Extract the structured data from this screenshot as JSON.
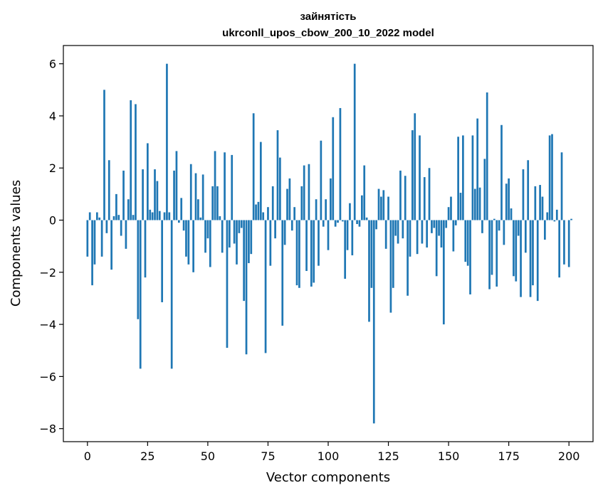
{
  "chart_data": {
    "type": "bar",
    "title": "зайнятість",
    "subtitle": "ukrconll_upos_cbow_200_10_2022 model",
    "xlabel": "Vector components",
    "ylabel": "Components values",
    "xlim": [
      -10,
      210
    ],
    "ylim": [
      -8.5,
      6.7
    ],
    "xticks": [
      0,
      25,
      50,
      75,
      100,
      125,
      150,
      175,
      200
    ],
    "yticks": [
      -8,
      -6,
      -4,
      -2,
      0,
      2,
      4,
      6
    ],
    "ytick_labels": [
      "−8",
      "−6",
      "−4",
      "−2",
      "0",
      "2",
      "4",
      "6"
    ],
    "bar_color": "#1f77b4",
    "grid": false,
    "values": [
      -1.4,
      0.3,
      -2.5,
      -1.7,
      0.3,
      0.1,
      -1.4,
      5.0,
      -0.5,
      2.3,
      -1.9,
      0.15,
      1.0,
      0.2,
      -0.6,
      1.9,
      -1.1,
      0.8,
      4.6,
      0.2,
      4.45,
      -3.8,
      -5.7,
      1.95,
      -2.2,
      2.95,
      0.4,
      0.3,
      1.95,
      1.5,
      0.35,
      -3.15,
      0.3,
      6.0,
      0.3,
      -5.7,
      1.9,
      2.65,
      -0.1,
      0.85,
      -0.4,
      -1.4,
      -1.7,
      2.15,
      -2.0,
      1.8,
      0.8,
      0.1,
      1.75,
      -1.25,
      -0.7,
      -1.8,
      1.3,
      2.65,
      1.3,
      0.15,
      -1.25,
      2.6,
      -4.9,
      -1.05,
      2.5,
      -0.9,
      -1.7,
      -0.5,
      -0.3,
      -3.1,
      -5.15,
      -1.65,
      -1.3,
      4.1,
      0.6,
      0.7,
      3.0,
      0.3,
      -5.1,
      0.5,
      -1.75,
      1.3,
      -0.7,
      3.45,
      2.4,
      -4.05,
      -0.95,
      1.2,
      1.6,
      -0.4,
      0.5,
      -2.5,
      -2.6,
      1.3,
      2.1,
      -1.95,
      2.15,
      -2.55,
      -2.4,
      0.8,
      -1.75,
      3.05,
      -0.25,
      0.8,
      -1.15,
      1.6,
      3.95,
      -0.25,
      -0.1,
      4.3,
      -0.05,
      -2.25,
      -1.15,
      0.65,
      -1.35,
      6.0,
      -0.15,
      -0.25,
      0.95,
      2.1,
      0.1,
      -3.9,
      -2.6,
      -7.8,
      -0.35,
      1.2,
      0.9,
      1.15,
      -1.1,
      0.9,
      -3.55,
      -2.6,
      -0.6,
      -0.9,
      1.9,
      -0.7,
      1.7,
      -2.9,
      -1.4,
      3.45,
      4.1,
      -1.3,
      3.25,
      -0.9,
      1.65,
      -1.05,
      2.0,
      -0.5,
      -0.3,
      -2.15,
      -0.6,
      -1.05,
      -4.0,
      -0.3,
      0.5,
      0.9,
      -1.2,
      -0.2,
      3.2,
      1.05,
      3.25,
      -1.6,
      -1.75,
      -2.85,
      3.25,
      1.2,
      3.9,
      1.25,
      -0.5,
      2.35,
      4.9,
      -2.65,
      -2.1,
      0.05,
      -2.55,
      -0.4,
      3.65,
      -0.95,
      1.4,
      1.6,
      0.45,
      -2.15,
      -2.35,
      -0.6,
      -2.95,
      1.95,
      -1.25,
      2.3,
      -2.95,
      -2.5,
      1.3,
      -3.1,
      1.35,
      0.9,
      -0.75,
      0.3,
      3.25,
      3.3,
      -0.05,
      0.4,
      -2.2,
      2.6,
      -1.7,
      0.0,
      -1.8,
      0.05
    ]
  }
}
